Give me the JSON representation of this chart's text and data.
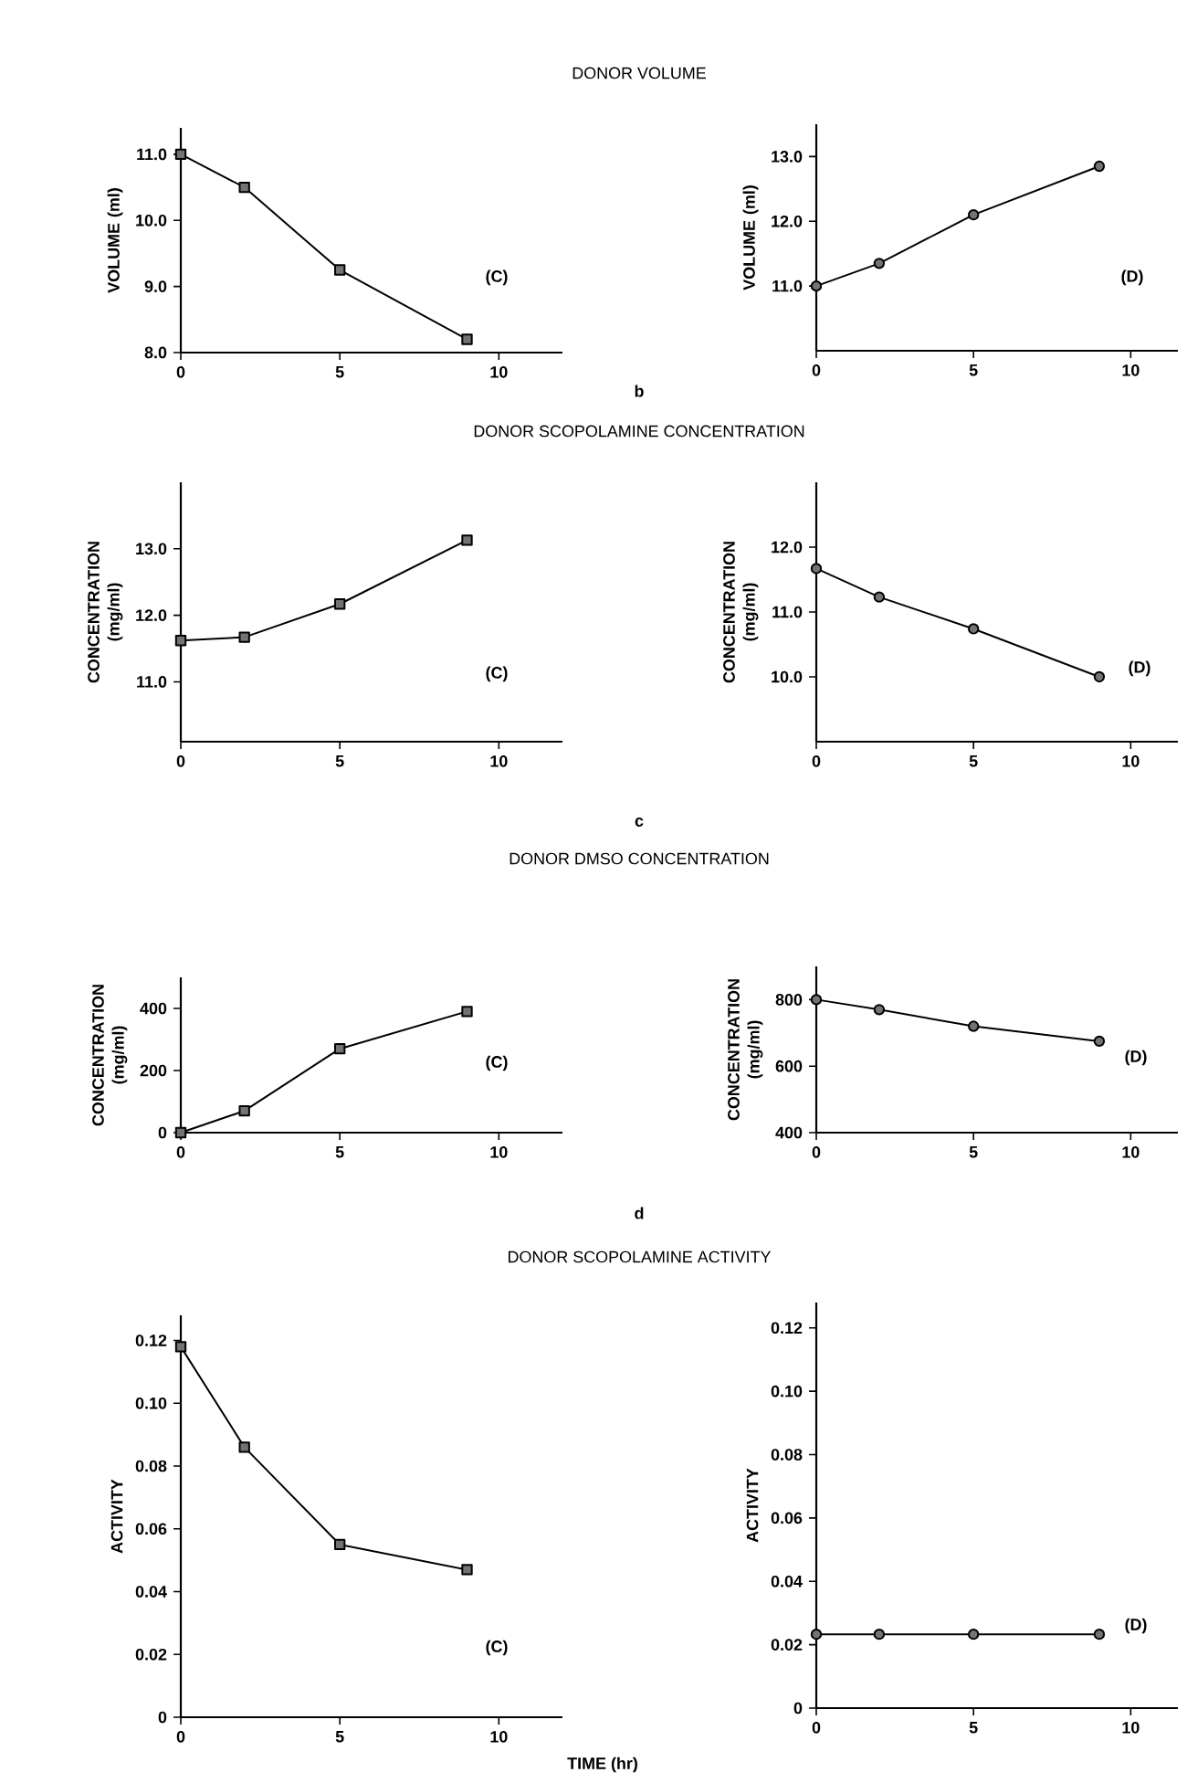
{
  "chart_data": [
    {
      "type": "other",
      "title": "DONOR VOLUME"
    },
    {
      "type": "line",
      "ylabel": "VOLUME (ml)",
      "x": [
        0,
        2,
        5,
        9
      ],
      "values": [
        11.0,
        10.5,
        9.25,
        8.2
      ],
      "color": "#000000",
      "marker": "square",
      "xlim": [
        0,
        12
      ],
      "xticks": [
        0,
        5,
        10
      ],
      "ylim": [
        8.0,
        11.4
      ],
      "yticks": [
        {
          "value": 8,
          "label": "8.0"
        },
        {
          "value": 9,
          "label": "9.0"
        },
        {
          "value": 10,
          "label": "10.0"
        },
        {
          "value": 11,
          "label": "11.0"
        }
      ],
      "annotations": [
        "(C)"
      ]
    },
    {
      "type": "line",
      "ylabel": "VOLUME (ml)",
      "x": [
        0,
        2,
        5,
        9
      ],
      "values": [
        11.0,
        11.35,
        12.1,
        12.85
      ],
      "color": "#000000",
      "marker": "circle",
      "xlim": [
        0,
        11.5
      ],
      "xticks": [
        0,
        5,
        10
      ],
      "ylim": [
        10.0,
        13.5
      ],
      "yticks": [
        {
          "value": 11,
          "label": "11.0"
        },
        {
          "value": 12,
          "label": "12.0"
        },
        {
          "value": 13,
          "label": "13.0"
        }
      ],
      "annotations": [
        "(D)"
      ]
    },
    {
      "type": "other",
      "title": "DONOR SCOPOLAMINE CONCENTRATION",
      "annotations": [
        "b"
      ]
    },
    {
      "type": "line",
      "ylabel": "CONCENTRATION (mg/ml)",
      "x": [
        0,
        2,
        5,
        9
      ],
      "values": [
        11.62,
        11.67,
        12.17,
        13.13
      ],
      "color": "#000000",
      "marker": "square",
      "xlim": [
        0,
        12
      ],
      "xticks": [
        0,
        5,
        10
      ],
      "ylim": [
        10.1,
        14.0
      ],
      "yticks": [
        {
          "value": 11,
          "label": "11.0"
        },
        {
          "value": 12,
          "label": "12.0"
        },
        {
          "value": 13,
          "label": "13.0"
        }
      ],
      "annotations": [
        "(C)"
      ]
    },
    {
      "type": "line",
      "ylabel": "CONCENTRATION (mg/ml)",
      "x": [
        0,
        2,
        5,
        9
      ],
      "values": [
        11.67,
        11.23,
        10.74,
        10.0
      ],
      "color": "#000000",
      "marker": "circle",
      "xlim": [
        0,
        11.5
      ],
      "xticks": [
        0,
        5,
        10
      ],
      "ylim": [
        9.0,
        13.0
      ],
      "yticks": [
        {
          "value": 10,
          "label": "10.0"
        },
        {
          "value": 11,
          "label": "11.0"
        },
        {
          "value": 12,
          "label": "12.0"
        }
      ],
      "annotations": [
        "(D)"
      ]
    },
    {
      "type": "other",
      "title": "DONOR DMSO CONCENTRATION",
      "annotations": [
        "c"
      ]
    },
    {
      "type": "line",
      "ylabel": "CONCENTRATION (mg/ml)",
      "x": [
        0,
        2,
        5,
        9
      ],
      "values": [
        0,
        70,
        270,
        390
      ],
      "color": "#000000",
      "marker": "square",
      "xlim": [
        0,
        12
      ],
      "xticks": [
        0,
        5,
        10
      ],
      "ylim": [
        0,
        500
      ],
      "yticks": [
        0,
        200,
        400
      ],
      "annotations": [
        "(C)"
      ]
    },
    {
      "type": "line",
      "ylabel": "CONCENTRATION (mg/ml)",
      "x": [
        0,
        2,
        5,
        9
      ],
      "values": [
        800,
        770,
        720,
        675
      ],
      "color": "#000000",
      "marker": "circle",
      "xlim": [
        0,
        11.5
      ],
      "xticks": [
        0,
        5,
        10
      ],
      "ylim": [
        400,
        900
      ],
      "yticks": [
        400,
        600,
        800
      ],
      "annotations": [
        "(D)"
      ]
    },
    {
      "type": "other",
      "title": "DONOR SCOPOLAMINE ACTIVITY",
      "annotations": [
        "d"
      ]
    },
    {
      "type": "line",
      "xlabel": "TIME (hr)",
      "ylabel": "ACTIVITY",
      "x": [
        0,
        2,
        5,
        9
      ],
      "values": [
        0.118,
        0.086,
        0.055,
        0.047
      ],
      "color": "#000000",
      "marker": "square",
      "xlim": [
        0,
        12
      ],
      "xticks": [
        0,
        5,
        10
      ],
      "ylim": [
        0,
        0.128
      ],
      "yticks": [
        0,
        0.02,
        0.04,
        0.06,
        0.08,
        {
          "value": 0.1,
          "label": "0.10"
        },
        0.12
      ],
      "annotations": [
        "(C)"
      ]
    },
    {
      "type": "line",
      "ylabel": "ACTIVITY",
      "x": [
        0,
        2,
        5,
        9
      ],
      "values": [
        0.0233,
        0.0233,
        0.0233,
        0.0233
      ],
      "color": "#000000",
      "marker": "circle",
      "xlim": [
        0,
        11.5
      ],
      "xticks": [
        0,
        5,
        10
      ],
      "ylim": [
        0,
        0.128
      ],
      "yticks": [
        0,
        0.02,
        0.04,
        0.06,
        0.08,
        {
          "value": 0.1,
          "label": "0.10"
        },
        0.12
      ],
      "annotations": [
        "(D)"
      ]
    }
  ]
}
